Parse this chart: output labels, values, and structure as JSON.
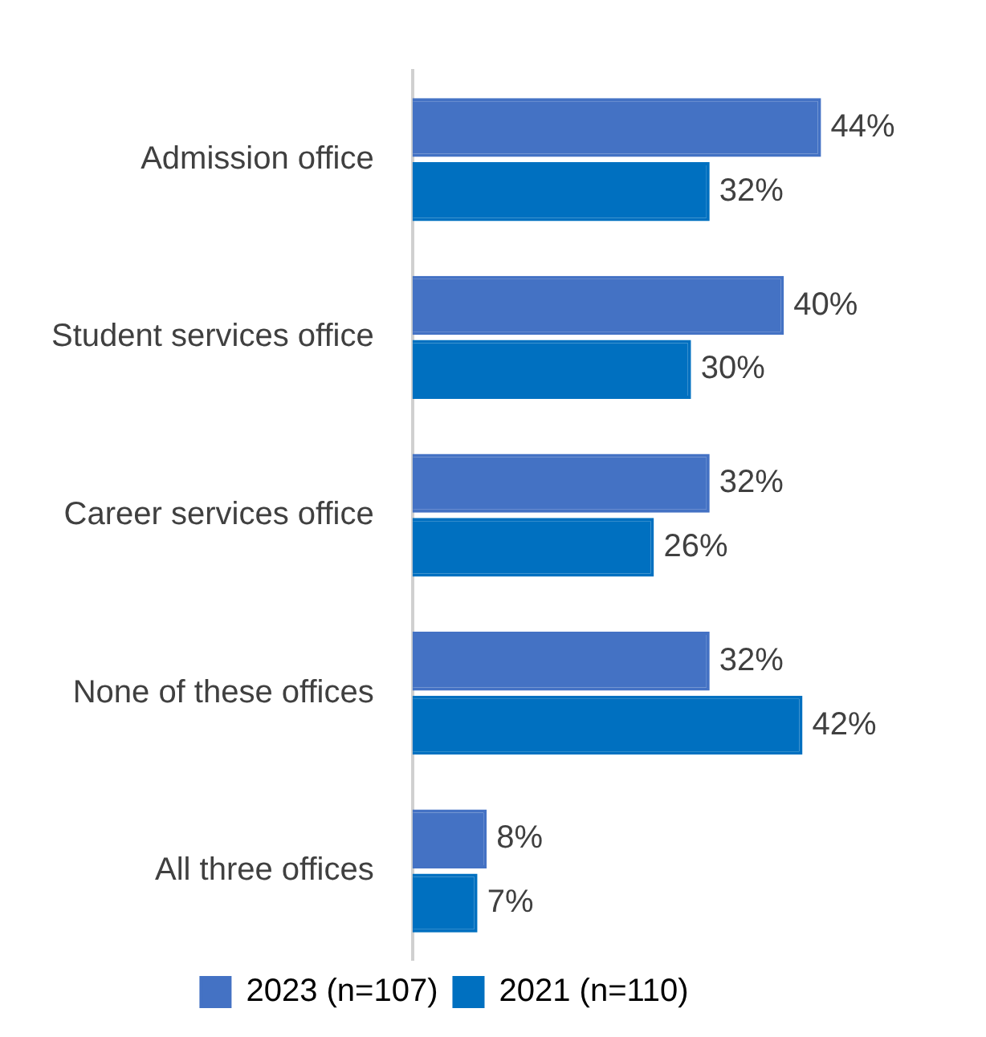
{
  "chart_data": {
    "type": "bar",
    "orientation": "horizontal",
    "categories": [
      "Admission office",
      "Student services office",
      "Career services office",
      "None of these offices",
      "All three offices"
    ],
    "series": [
      {
        "name": "2023 (n=107)",
        "color": "#4472c4",
        "values": [
          44,
          40,
          32,
          32,
          8
        ],
        "value_labels": [
          "44%",
          "40%",
          "32%",
          "32%",
          "8%"
        ]
      },
      {
        "name": "2021 (n=110)",
        "color": "#0070c0",
        "values": [
          32,
          30,
          26,
          42,
          7
        ],
        "value_labels": [
          "32%",
          "30%",
          "26%",
          "42%",
          "7%"
        ]
      }
    ],
    "legend": "bottom"
  }
}
